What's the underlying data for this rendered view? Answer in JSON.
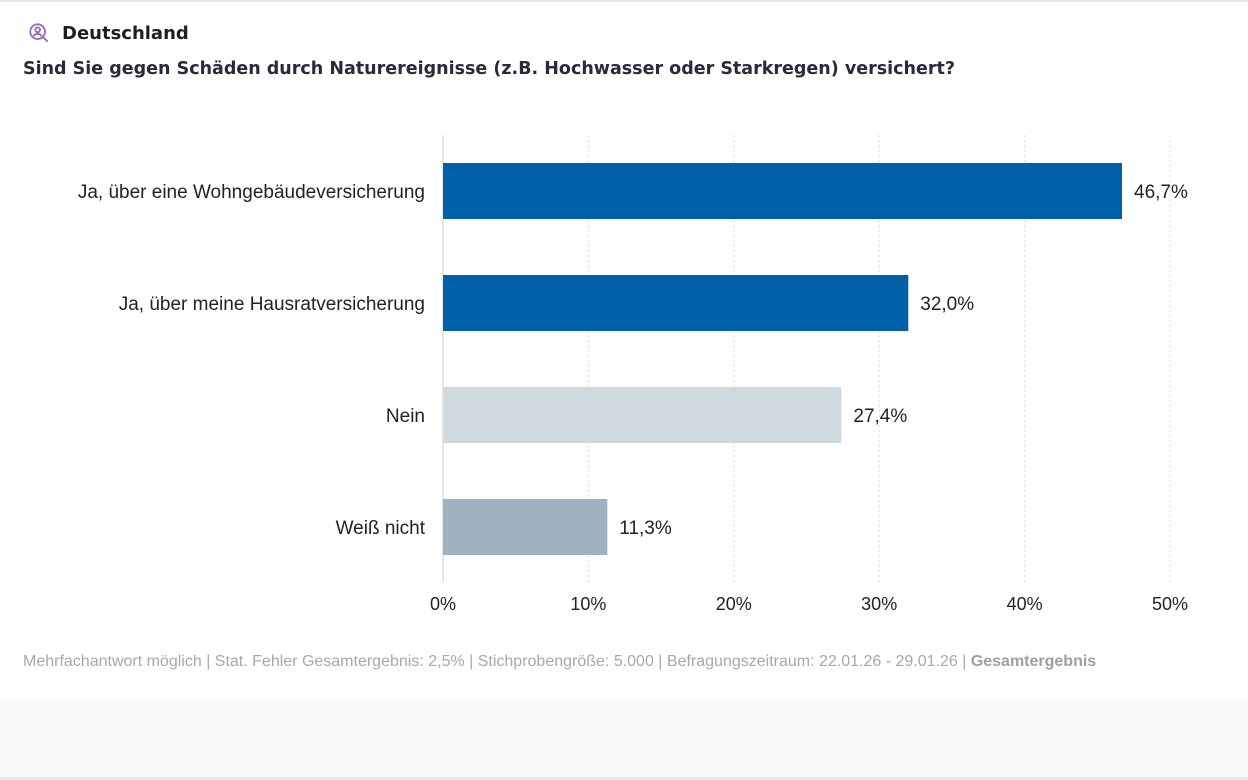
{
  "header": {
    "location": "Deutschland",
    "icon": "user-search-icon",
    "question": "Sind Sie gegen Schäden durch Naturereignisse (z.B. Hochwasser oder Starkregen) versichert?"
  },
  "chart_data": {
    "type": "bar",
    "orientation": "horizontal",
    "categories": [
      "Ja, über eine Wohngebäudeversicherung",
      "Ja, über meine Hausratversicherung",
      "Nein",
      "Weiß nicht"
    ],
    "values": [
      46.7,
      32.0,
      27.4,
      11.3
    ],
    "data_labels": [
      "46,7%",
      "32,0%",
      "27,4%",
      "11,3%"
    ],
    "colors": [
      "#0060a8",
      "#0060a8",
      "#cfdadf",
      "#a0b2c0"
    ],
    "xlim": [
      0,
      50
    ],
    "xticks": [
      "0%",
      "10%",
      "20%",
      "30%",
      "40%",
      "50%"
    ],
    "grid": "vertical dotted",
    "title": "",
    "xlabel": "",
    "ylabel": ""
  },
  "footer": {
    "text": "Mehrfachantwort möglich | Stat. Fehler Gesamtergebnis: 2,5% | Stichprobengröße: 5.000 | Befragungszeitraum: 22.01.26 - 29.01.26 | ",
    "bold": "Gesamtergebnis"
  }
}
